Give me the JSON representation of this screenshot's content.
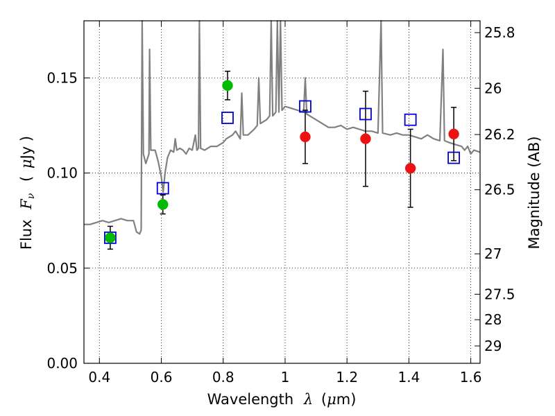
{
  "chart_data": {
    "type": "scatter",
    "title": "",
    "xlabel": "Wavelength",
    "xlabel_symbol": "λ",
    "xlabel_unit_open": "(",
    "xlabel_unit_symbol": "μ",
    "xlabel_unit_rest": "m)",
    "ylabel": "Flux",
    "ylabel_symbol": "F",
    "ylabel_subscript": "ν",
    "ylabel_unit_open": "(",
    "ylabel_unit_symbol": "μ",
    "ylabel_unit_rest": "Jy )",
    "y2label": "Magnitude (AB)",
    "xlim": [
      0.35,
      1.63
    ],
    "ylim": [
      0.0,
      0.18
    ],
    "grid": true,
    "x_ticks": [
      {
        "value": 0.4,
        "label": "0.4"
      },
      {
        "value": 0.6,
        "label": "0.6"
      },
      {
        "value": 0.8,
        "label": "0.8"
      },
      {
        "value": 1.0,
        "label": "1"
      },
      {
        "value": 1.2,
        "label": "1.2"
      },
      {
        "value": 1.4,
        "label": "1.4"
      },
      {
        "value": 1.6,
        "label": "1.6"
      }
    ],
    "y_ticks": [
      {
        "value": 0.0,
        "label": "0.00"
      },
      {
        "value": 0.05,
        "label": "0.05"
      },
      {
        "value": 0.1,
        "label": "0.10"
      },
      {
        "value": 0.15,
        "label": "0.15"
      }
    ],
    "y2_ticks": [
      {
        "mag": 25.8,
        "label": "25.8"
      },
      {
        "mag": 26.0,
        "label": "26"
      },
      {
        "mag": 26.2,
        "label": "26.2"
      },
      {
        "mag": 26.5,
        "label": "26.5"
      },
      {
        "mag": 27.0,
        "label": "27"
      },
      {
        "mag": 27.5,
        "label": "27.5"
      },
      {
        "mag": 28.0,
        "label": "28"
      },
      {
        "mag": 29.0,
        "label": "29"
      }
    ],
    "colors": {
      "spectrum": "#808080",
      "green_points": "#00bb00",
      "red_points": "#ee1111",
      "model_boxes": "#0000cc",
      "error_bars": "#000000",
      "grid": "#000000"
    },
    "series": [
      {
        "kind": "line",
        "points": [
          [
            0.35,
            0.073
          ],
          [
            0.37,
            0.073
          ],
          [
            0.39,
            0.074
          ],
          [
            0.41,
            0.075
          ],
          [
            0.43,
            0.074
          ],
          [
            0.45,
            0.075
          ],
          [
            0.47,
            0.076
          ],
          [
            0.49,
            0.075
          ],
          [
            0.51,
            0.075
          ],
          [
            0.52,
            0.069
          ],
          [
            0.53,
            0.068
          ],
          [
            0.535,
            0.07
          ],
          [
            0.538,
            0.18
          ],
          [
            0.542,
            0.11
          ],
          [
            0.55,
            0.105
          ],
          [
            0.56,
            0.11
          ],
          [
            0.562,
            0.165
          ],
          [
            0.566,
            0.112
          ],
          [
            0.58,
            0.112
          ],
          [
            0.59,
            0.106
          ],
          [
            0.6,
            0.098
          ],
          [
            0.606,
            0.09
          ],
          [
            0.612,
            0.1
          ],
          [
            0.62,
            0.108
          ],
          [
            0.63,
            0.112
          ],
          [
            0.64,
            0.111
          ],
          [
            0.645,
            0.118
          ],
          [
            0.65,
            0.112
          ],
          [
            0.66,
            0.113
          ],
          [
            0.67,
            0.112
          ],
          [
            0.68,
            0.11
          ],
          [
            0.69,
            0.113
          ],
          [
            0.7,
            0.112
          ],
          [
            0.71,
            0.12
          ],
          [
            0.715,
            0.112
          ],
          [
            0.72,
            0.113
          ],
          [
            0.723,
            0.18
          ],
          [
            0.727,
            0.113
          ],
          [
            0.74,
            0.112
          ],
          [
            0.76,
            0.114
          ],
          [
            0.78,
            0.114
          ],
          [
            0.8,
            0.116
          ],
          [
            0.81,
            0.118
          ],
          [
            0.83,
            0.12
          ],
          [
            0.84,
            0.122
          ],
          [
            0.855,
            0.118
          ],
          [
            0.86,
            0.142
          ],
          [
            0.865,
            0.12
          ],
          [
            0.88,
            0.12
          ],
          [
            0.9,
            0.123
          ],
          [
            0.91,
            0.125
          ],
          [
            0.915,
            0.15
          ],
          [
            0.92,
            0.126
          ],
          [
            0.94,
            0.128
          ],
          [
            0.95,
            0.13
          ],
          [
            0.955,
            0.18
          ],
          [
            0.96,
            0.13
          ],
          [
            0.97,
            0.132
          ],
          [
            0.975,
            0.18
          ],
          [
            0.98,
            0.132
          ],
          [
            0.985,
            0.18
          ],
          [
            0.99,
            0.133
          ],
          [
            1.0,
            0.135
          ],
          [
            1.02,
            0.134
          ],
          [
            1.04,
            0.133
          ],
          [
            1.06,
            0.132
          ],
          [
            1.065,
            0.15
          ],
          [
            1.07,
            0.131
          ],
          [
            1.08,
            0.13
          ],
          [
            1.1,
            0.128
          ],
          [
            1.12,
            0.126
          ],
          [
            1.14,
            0.124
          ],
          [
            1.16,
            0.124
          ],
          [
            1.18,
            0.125
          ],
          [
            1.2,
            0.123
          ],
          [
            1.22,
            0.124
          ],
          [
            1.24,
            0.123
          ],
          [
            1.26,
            0.122
          ],
          [
            1.28,
            0.122
          ],
          [
            1.3,
            0.121
          ],
          [
            1.31,
            0.18
          ],
          [
            1.315,
            0.121
          ],
          [
            1.34,
            0.12
          ],
          [
            1.36,
            0.121
          ],
          [
            1.38,
            0.12
          ],
          [
            1.4,
            0.12
          ],
          [
            1.42,
            0.119
          ],
          [
            1.44,
            0.118
          ],
          [
            1.46,
            0.12
          ],
          [
            1.48,
            0.118
          ],
          [
            1.5,
            0.117
          ],
          [
            1.51,
            0.165
          ],
          [
            1.515,
            0.117
          ],
          [
            1.53,
            0.116
          ],
          [
            1.55,
            0.115
          ],
          [
            1.57,
            0.114
          ],
          [
            1.58,
            0.112
          ],
          [
            1.59,
            0.114
          ],
          [
            1.6,
            0.11
          ],
          [
            1.61,
            0.112
          ],
          [
            1.63,
            0.111
          ]
        ]
      },
      {
        "kind": "points",
        "marker": "circle",
        "points": [
          {
            "x": 0.435,
            "y": 0.066,
            "yerr": 0.006
          },
          {
            "x": 0.605,
            "y": 0.0835,
            "yerr": 0.005
          },
          {
            "x": 0.814,
            "y": 0.146,
            "yerr": 0.0075
          }
        ]
      },
      {
        "kind": "points",
        "marker": "circle",
        "points": [
          {
            "x": 1.065,
            "y": 0.119,
            "yerr": 0.014
          },
          {
            "x": 1.26,
            "y": 0.118,
            "yerr": 0.025
          },
          {
            "x": 1.405,
            "y": 0.1025,
            "yerr": 0.0205
          },
          {
            "x": 1.545,
            "y": 0.1205,
            "yerr": 0.014
          }
        ]
      },
      {
        "kind": "points",
        "marker": "square",
        "points": [
          {
            "x": 0.435,
            "y": 0.066
          },
          {
            "x": 0.605,
            "y": 0.092
          },
          {
            "x": 0.814,
            "y": 0.129
          },
          {
            "x": 1.065,
            "y": 0.135
          },
          {
            "x": 1.26,
            "y": 0.131
          },
          {
            "x": 1.405,
            "y": 0.128
          },
          {
            "x": 1.545,
            "y": 0.108
          }
        ]
      }
    ]
  }
}
